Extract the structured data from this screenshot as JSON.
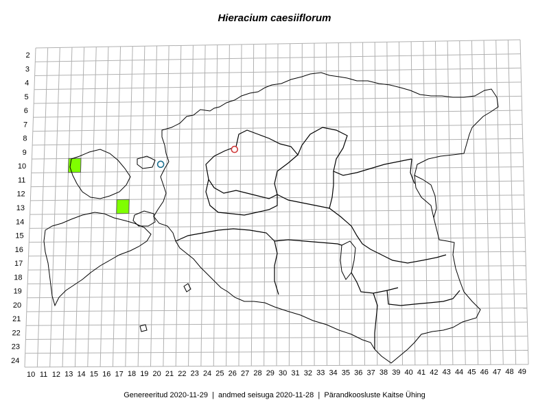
{
  "title": "Hieracium caesiiflorum",
  "footer": {
    "generated": "Genereeritud 2020-11-29",
    "data_state": "andmed seisuga 2020-11-28",
    "organization": "Pärandkoosluste Kaitse Ühing",
    "separator": "|"
  },
  "grid": {
    "row_labels": [
      "2",
      "3",
      "4",
      "5",
      "6",
      "7",
      "8",
      "9",
      "10",
      "11",
      "12",
      "13",
      "14",
      "15",
      "16",
      "17",
      "18",
      "19",
      "20",
      "21",
      "22",
      "23",
      "24"
    ],
    "col_labels": [
      "10",
      "11",
      "12",
      "13",
      "14",
      "15",
      "16",
      "17",
      "18",
      "19",
      "20",
      "21",
      "22",
      "23",
      "24",
      "25",
      "26",
      "27",
      "28",
      "29",
      "30",
      "31",
      "32",
      "33",
      "34",
      "35",
      "36",
      "37",
      "38",
      "39",
      "40",
      "41",
      "42",
      "43",
      "44",
      "45",
      "46",
      "47",
      "48",
      "49"
    ]
  },
  "occupied_squares": [
    {
      "col": "13",
      "row": "10"
    },
    {
      "col": "17",
      "row": "13"
    }
  ],
  "observation_points": [
    {
      "col": "20",
      "row": "10",
      "color": "#1a6e8e"
    },
    {
      "col": "26",
      "row": "9",
      "color": "#d03a3a"
    }
  ],
  "colors": {
    "square_fill": "#7fff00",
    "grid_line": "#b0b0b0",
    "coast_line": "#000000"
  }
}
